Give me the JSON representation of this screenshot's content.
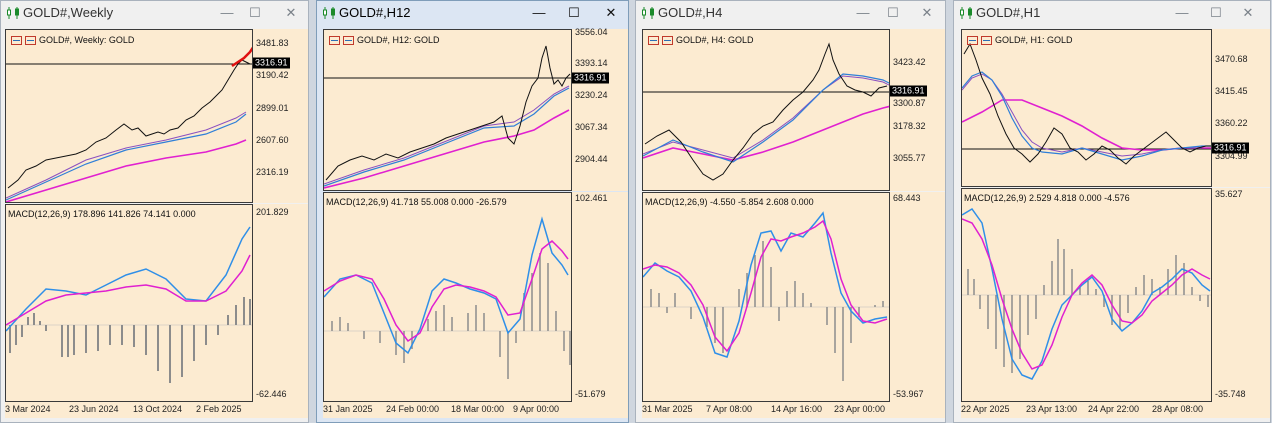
{
  "windows": [
    {
      "title": "GOLD#,Weekly",
      "active": false,
      "legend": "GOLD#, Weekly:  GOLD",
      "macd_label": "MACD(12,26,9) 178.896 141.826 74.141 0.000",
      "price_scale": [
        "3481.83",
        "3316.91",
        "3190.42",
        "2899.01",
        "2607.60",
        "2316.19"
      ],
      "price_tag": "3316.91",
      "macd_scale": [
        "201.829",
        "-62.446"
      ],
      "time_labels": [
        "3 Mar 2024",
        "23 Jun 2024",
        "13 Oct 2024",
        "2 Feb 2025"
      ]
    },
    {
      "title": "GOLD#,H12",
      "active": true,
      "legend": "GOLD#, H12:  GOLD",
      "macd_label": "MACD(12,26,9) 41.718 55.008 0.000 -26.579",
      "price_scale": [
        "3556.04",
        "3393.14",
        "3316.91",
        "3230.24",
        "3067.34",
        "2904.44"
      ],
      "price_tag": "3316.91",
      "macd_scale": [
        "102.461",
        "-51.679"
      ],
      "time_labels": [
        "31 Jan 2025",
        "24 Feb 00:00",
        "18 Mar 00:00",
        "9 Apr 00:00"
      ]
    },
    {
      "title": "GOLD#,H4",
      "active": false,
      "legend": "GOLD#, H4:  GOLD",
      "macd_label": "MACD(12,26,9) -4.550 -5.854 2.608 0.000",
      "price_scale": [
        "3423.42",
        "3316.91",
        "3300.87",
        "3178.32",
        "3055.77"
      ],
      "price_tag": "3316.91",
      "macd_scale": [
        "68.443",
        "-53.967"
      ],
      "time_labels": [
        "31 Mar 2025",
        "7 Apr 08:00",
        "14 Apr 16:00",
        "23 Apr 00:00"
      ]
    },
    {
      "title": "GOLD#,H1",
      "active": false,
      "legend": "GOLD#, H1:  GOLD",
      "macd_label": "MACD(12,26,9) 2.529 4.818 0.000 -4.576",
      "price_scale": [
        "3470.68",
        "3415.45",
        "3360.22",
        "3316.91",
        "3304.99"
      ],
      "price_tag": "3316.91",
      "macd_scale": [
        "35.627",
        "-35.748"
      ],
      "time_labels": [
        "22 Apr 2025",
        "23 Apr 13:00",
        "24 Apr 22:00",
        "28 Apr 08:00"
      ]
    }
  ],
  "titlebar_buttons": {
    "minimize": "—",
    "maximize": "☐",
    "close": "✕"
  },
  "colors": {
    "background": "#fcebd1",
    "ma_blue": "#2f7fd8",
    "ma_purple": "#8a4fc0",
    "ma_magenta": "#e020d0",
    "macd_line": "#2f8fe8",
    "signal_line": "#e020d0",
    "histogram": "#8c8c8c",
    "price": "#111111",
    "annotation": "#e01010"
  }
}
